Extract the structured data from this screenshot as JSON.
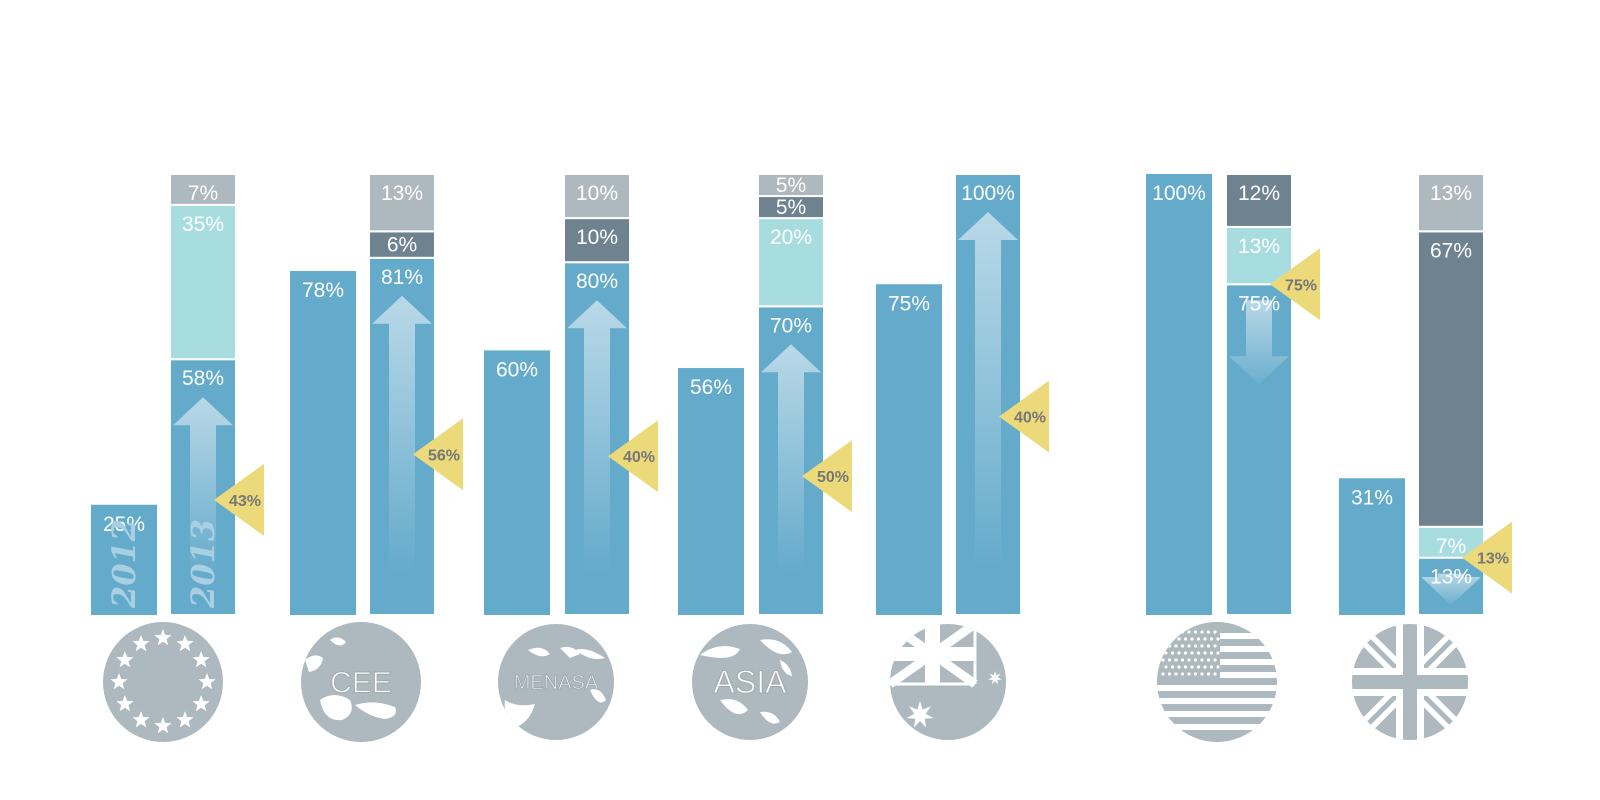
{
  "chart_data": {
    "type": "bar",
    "colors": {
      "base": "#64aacb",
      "light_teal": "#a8dde0",
      "dark_gray": "#6f8290",
      "light_gray": "#aeb8bf",
      "badge": "#ecd97a",
      "icon": "#aeb8bf"
    },
    "year_labels": [
      "2012",
      "2013"
    ],
    "groups": [
      {
        "icon": "eu-flag-icon",
        "region_label": "",
        "bar2012": {
          "value": 25,
          "label": "25%"
        },
        "bar2013": [
          {
            "value": 58,
            "label": "58%",
            "color": "base"
          },
          {
            "value": 35,
            "label": "35%",
            "color": "light_teal"
          },
          {
            "value": 7,
            "label": "7%",
            "color": "light_gray"
          }
        ],
        "change": {
          "label": "43%",
          "direction": "up"
        }
      },
      {
        "icon": "cee-map-icon",
        "region_label": "CEE",
        "bar2012": {
          "value": 78,
          "label": "78%"
        },
        "bar2013": [
          {
            "value": 81,
            "label": "81%",
            "color": "base"
          },
          {
            "value": 6,
            "label": "6%",
            "color": "dark_gray"
          },
          {
            "value": 13,
            "label": "13%",
            "color": "light_gray"
          }
        ],
        "change": {
          "label": "56%",
          "direction": "up"
        }
      },
      {
        "icon": "menasa-map-icon",
        "region_label": "MENASA",
        "bar2012": {
          "value": 60,
          "label": "60%"
        },
        "bar2013": [
          {
            "value": 80,
            "label": "80%",
            "color": "base"
          },
          {
            "value": 10,
            "label": "10%",
            "color": "dark_gray"
          },
          {
            "value": 10,
            "label": "10%",
            "color": "light_gray"
          }
        ],
        "change": {
          "label": "40%",
          "direction": "up"
        }
      },
      {
        "icon": "asia-map-icon",
        "region_label": "ASIA",
        "bar2012": {
          "value": 56,
          "label": "56%"
        },
        "bar2013": [
          {
            "value": 70,
            "label": "70%",
            "color": "base"
          },
          {
            "value": 20,
            "label": "20%",
            "color": "light_teal"
          },
          {
            "value": 5,
            "label": "5%",
            "color": "dark_gray"
          },
          {
            "value": 5,
            "label": "5%",
            "color": "light_gray"
          }
        ],
        "change": {
          "label": "50%",
          "direction": "up"
        }
      },
      {
        "icon": "australia-flag-icon",
        "region_label": "",
        "bar2012": {
          "value": 75,
          "label": "75%"
        },
        "bar2013": [
          {
            "value": 100,
            "label": "100%",
            "color": "base"
          }
        ],
        "change": {
          "label": "40%",
          "direction": "up"
        }
      },
      {
        "icon": "usa-flag-icon",
        "region_label": "",
        "bar2012": {
          "value": 100,
          "label": "100%"
        },
        "bar2013": [
          {
            "value": 75,
            "label": "75%",
            "color": "base"
          },
          {
            "value": 13,
            "label": "13%",
            "color": "light_teal"
          },
          {
            "value": 12,
            "label": "12%",
            "color": "dark_gray"
          }
        ],
        "change": {
          "label": "75%",
          "direction": "down"
        }
      },
      {
        "icon": "uk-flag-icon",
        "region_label": "",
        "bar2012": {
          "value": 31,
          "label": "31%"
        },
        "bar2013": [
          {
            "value": 13,
            "label": "13%",
            "color": "base"
          },
          {
            "value": 7,
            "label": "7%",
            "color": "light_teal"
          },
          {
            "value": 67,
            "label": "67%",
            "color": "dark_gray"
          },
          {
            "value": 13,
            "label": "13%",
            "color": "light_gray"
          }
        ],
        "change": {
          "label": "13%",
          "direction": "down"
        }
      }
    ]
  }
}
